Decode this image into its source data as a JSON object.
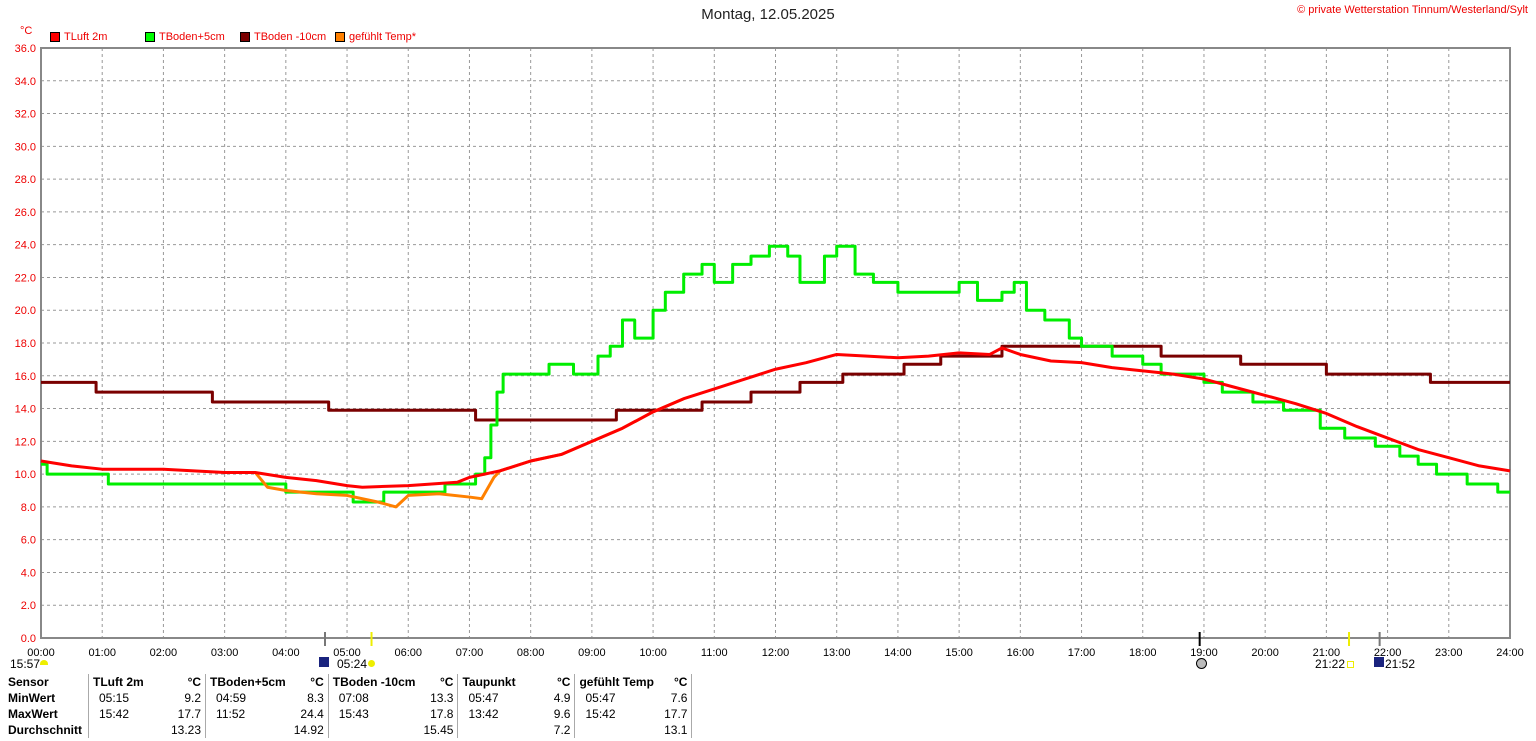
{
  "title": "Montag, 12.05.2025",
  "copyright": "© private Wetterstation Tinnum/Westerland/Sylt",
  "colors": {
    "TLuft": "#ff0000",
    "TBoden5": "#00ee00",
    "TBoden10": "#7a0000",
    "gefuehlt": "#ff8000"
  },
  "astro": {
    "moonset": "15:57",
    "sunrise": "05:24",
    "sunset_label": "21:22",
    "moonrise": "21:52"
  },
  "chart_data": {
    "type": "line",
    "ylabel": "°C",
    "ylim": [
      0,
      36
    ],
    "yticks": [
      "0.0",
      "2.0",
      "4.0",
      "6.0",
      "8.0",
      "10.0",
      "12.0",
      "14.0",
      "16.0",
      "18.0",
      "20.0",
      "22.0",
      "24.0",
      "26.0",
      "28.0",
      "30.0",
      "32.0",
      "34.0",
      "36.0"
    ],
    "xlim": [
      0,
      24
    ],
    "xticks": [
      "00:00",
      "01:00",
      "02:00",
      "03:00",
      "04:00",
      "05:00",
      "06:00",
      "07:00",
      "08:00",
      "09:00",
      "10:00",
      "11:00",
      "12:00",
      "13:00",
      "14:00",
      "15:00",
      "16:00",
      "17:00",
      "18:00",
      "19:00",
      "20:00",
      "21:00",
      "22:00",
      "23:00",
      "24:00"
    ],
    "grid": true,
    "legend": "top-left",
    "series": [
      {
        "name": "TLuft 2m",
        "color": "#ff0000",
        "step": false,
        "x": [
          0,
          0.5,
          1,
          2,
          3,
          3.5,
          4,
          4.5,
          5,
          5.25,
          6,
          6.8,
          7,
          7.5,
          8,
          8.5,
          9,
          9.5,
          10,
          10.5,
          11,
          11.5,
          12,
          12.5,
          13,
          13.5,
          14,
          14.5,
          15,
          15.5,
          15.7,
          16,
          16.5,
          17,
          17.5,
          18,
          18.5,
          19,
          19.5,
          20,
          20.5,
          21,
          21.5,
          22,
          22.5,
          23,
          23.5,
          24
        ],
        "y": [
          10.8,
          10.5,
          10.3,
          10.3,
          10.1,
          10.1,
          9.8,
          9.6,
          9.3,
          9.2,
          9.3,
          9.5,
          9.8,
          10.2,
          10.8,
          11.2,
          12.0,
          12.8,
          13.8,
          14.6,
          15.2,
          15.8,
          16.4,
          16.8,
          17.3,
          17.2,
          17.1,
          17.2,
          17.4,
          17.3,
          17.7,
          17.3,
          16.9,
          16.8,
          16.5,
          16.3,
          16.1,
          15.8,
          15.3,
          14.8,
          14.3,
          13.7,
          12.9,
          12.2,
          11.5,
          11.0,
          10.5,
          10.2
        ]
      },
      {
        "name": "TBoden+5cm",
        "color": "#00ee00",
        "step": true,
        "x": [
          0,
          0.1,
          1.1,
          4,
          5.1,
          5.6,
          6.6,
          7.1,
          7.25,
          7.35,
          7.45,
          7.55,
          8.3,
          8.7,
          9.1,
          9.3,
          9.5,
          9.7,
          10,
          10.2,
          10.5,
          10.8,
          11,
          11.3,
          11.6,
          11.9,
          12.2,
          12.4,
          12.8,
          13,
          13.3,
          13.6,
          14,
          14.5,
          15,
          15.3,
          15.7,
          15.9,
          16.1,
          16.4,
          16.8,
          17,
          17.5,
          18,
          18.3,
          19,
          19.3,
          19.8,
          20.3,
          20.9,
          21.3,
          21.8,
          22.2,
          22.5,
          22.8,
          23.3,
          23.8
        ],
        "y": [
          10.6,
          10.0,
          9.4,
          8.9,
          8.3,
          8.9,
          9.4,
          10.0,
          11.0,
          13.0,
          15.0,
          16.1,
          16.7,
          16.1,
          17.2,
          17.8,
          19.4,
          18.3,
          20.0,
          21.1,
          22.2,
          22.8,
          21.7,
          22.8,
          23.3,
          23.9,
          23.3,
          21.7,
          23.3,
          23.9,
          22.2,
          21.7,
          21.1,
          21.1,
          21.7,
          20.6,
          21.1,
          21.7,
          20.0,
          19.4,
          18.3,
          17.8,
          17.2,
          16.7,
          16.1,
          15.6,
          15.0,
          14.4,
          13.9,
          12.8,
          12.2,
          11.7,
          11.1,
          10.6,
          10.0,
          9.4,
          8.9
        ]
      },
      {
        "name": "TBoden -10cm",
        "color": "#7a0000",
        "step": true,
        "x": [
          0,
          0.9,
          2.8,
          4.7,
          7.1,
          9.4,
          10.8,
          11.6,
          12.4,
          13.1,
          14.1,
          14.7,
          15.7,
          18.3,
          19.6,
          21.0,
          22.7,
          24
        ],
        "y": [
          15.6,
          15.0,
          14.4,
          13.9,
          13.3,
          13.9,
          14.4,
          15.0,
          15.6,
          16.1,
          16.7,
          17.2,
          17.8,
          17.2,
          16.7,
          16.1,
          15.6,
          15.6
        ]
      },
      {
        "name": "gefühlt Temp*",
        "color": "#ff8000",
        "step": false,
        "x": [
          3.5,
          3.7,
          4,
          4.5,
          5,
          5.5,
          5.8,
          6,
          6.5,
          7,
          7.2,
          7.4,
          7.5,
          8,
          8.5,
          9,
          9.5,
          10,
          10.5
        ],
        "y": [
          10.1,
          9.2,
          9.0,
          8.8,
          8.7,
          8.3,
          8.0,
          8.7,
          8.8,
          8.6,
          8.5,
          9.8,
          10.2,
          10.8,
          11.2,
          12.0,
          12.8,
          13.8,
          14.6
        ]
      }
    ]
  },
  "table": {
    "header": [
      "Sensor",
      "TLuft 2m",
      "°C",
      "TBoden+5cm",
      "°C",
      "TBoden -10cm",
      "°C",
      "Taupunkt",
      "°C",
      "gefühlt Temp",
      "°C"
    ],
    "rows": [
      [
        "MinWert",
        "05:15",
        "9.2",
        "04:59",
        "8.3",
        "07:08",
        "13.3",
        "05:47",
        "4.9",
        "05:47",
        "7.6"
      ],
      [
        "MaxWert",
        "15:42",
        "17.7",
        "11:52",
        "24.4",
        "15:43",
        "17.8",
        "13:42",
        "9.6",
        "15:42",
        "17.7"
      ],
      [
        "Durchschnitt",
        "",
        "13.23",
        "",
        "14.92",
        "",
        "15.45",
        "",
        "7.2",
        "",
        "13.1"
      ]
    ]
  }
}
